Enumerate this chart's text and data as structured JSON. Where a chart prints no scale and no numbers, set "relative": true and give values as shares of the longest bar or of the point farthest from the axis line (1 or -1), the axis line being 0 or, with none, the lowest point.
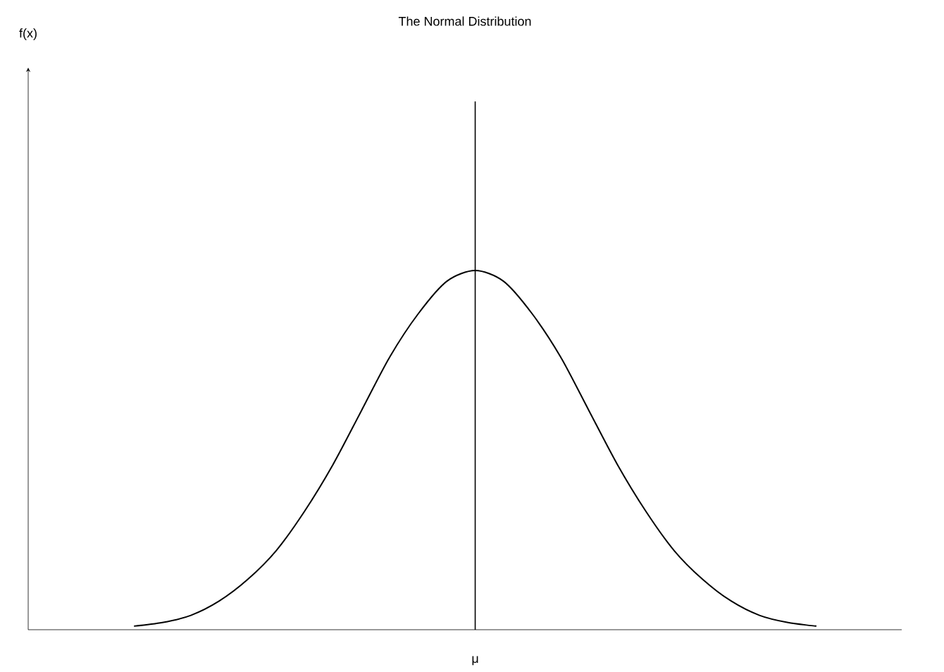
{
  "chart_data": {
    "type": "line",
    "title": "The Normal Distribution",
    "relative": true,
    "color": "#000000",
    "marker": "none",
    "line_style": "solid",
    "grid": false,
    "categories": [
      null,
      null,
      null,
      null,
      null,
      null,
      null,
      null,
      null,
      null,
      null,
      null,
      null,
      null,
      null,
      null,
      null,
      null,
      null,
      null,
      null,
      null,
      null,
      null,
      null
    ],
    "values": [
      0.01,
      0.02,
      0.04,
      0.08,
      0.14,
      0.22,
      0.33,
      0.46,
      0.61,
      0.76,
      0.88,
      0.97,
      1,
      0.97,
      0.88,
      0.76,
      0.61,
      0.46,
      0.33,
      0.22,
      0.14,
      0.08,
      0.04,
      0.02,
      0.01
    ],
    "annotations": [
      "f(x)",
      "μ"
    ]
  }
}
